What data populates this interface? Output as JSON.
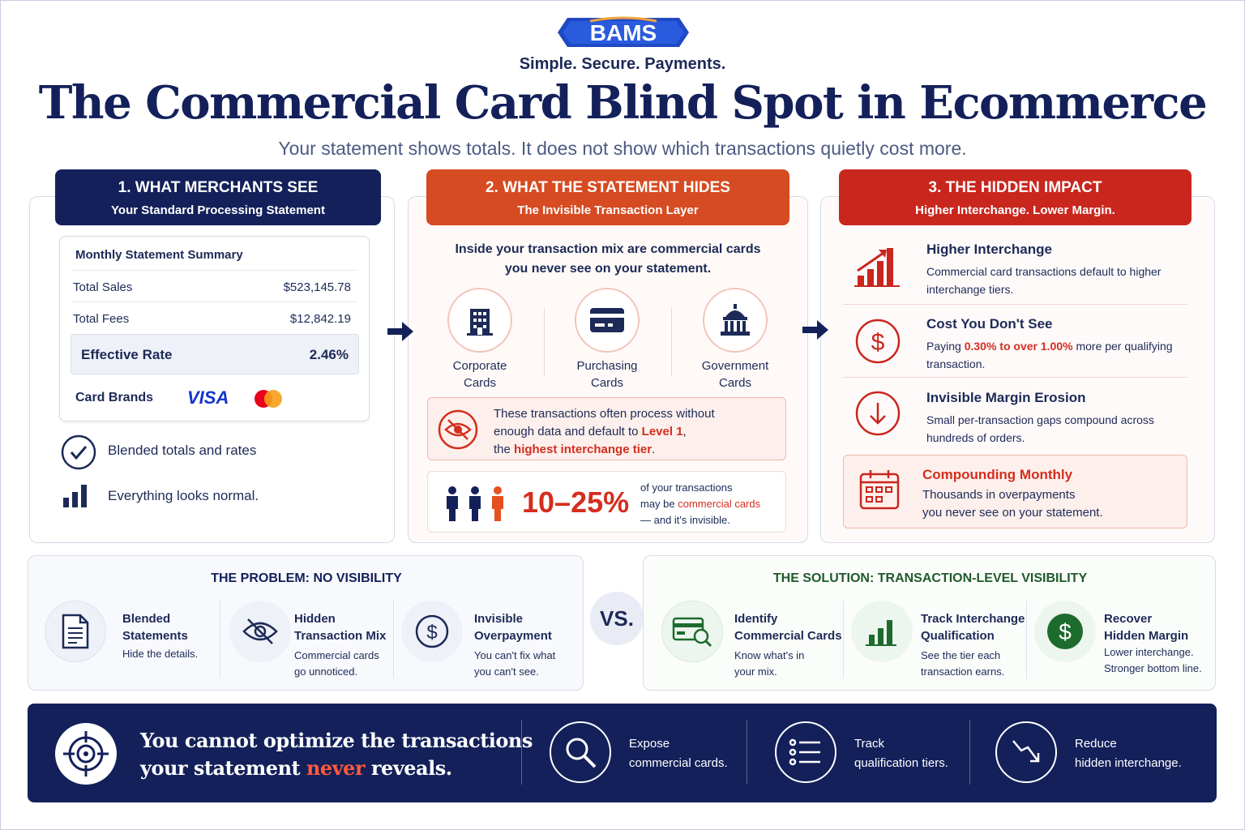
{
  "brand": {
    "logo_text": "BAMS",
    "tagline": "Simple. Secure. Payments."
  },
  "title": "The Commercial Card Blind Spot in Ecommerce",
  "subtitle": "Your statement shows totals. It does not show which transactions quietly cost more.",
  "colors": {
    "navy": "#13205a",
    "orange": "#d64b22",
    "red": "#c9261e",
    "green": "#1e6b2e"
  },
  "panel1": {
    "heading": "1. WHAT MERCHANTS SEE",
    "subheading": "Your Standard Processing Statement",
    "statement": {
      "title": "Monthly Statement Summary",
      "rows": [
        {
          "label": "Total Sales",
          "value": "$523,145.78"
        },
        {
          "label": "Total Fees",
          "value": "$12,842.19"
        }
      ],
      "effective_label": "Effective Rate",
      "effective_value": "2.46%",
      "brands_label": "Card Brands",
      "visa": "VISA"
    },
    "points": [
      {
        "icon": "check-circle-icon",
        "text": "Blended totals and rates"
      },
      {
        "icon": "bar-chart-icon",
        "text": "Everything looks normal."
      }
    ]
  },
  "panel2": {
    "heading": "2. WHAT THE STATEMENT HIDES",
    "subheading": "The Invisible Transaction Layer",
    "intro_line1": "Inside your transaction mix are commercial cards",
    "intro_line2": "you never see on your statement.",
    "cards": [
      {
        "icon": "building-icon",
        "line1": "Corporate",
        "line2": "Cards"
      },
      {
        "icon": "credit-card-icon",
        "line1": "Purchasing",
        "line2": "Cards"
      },
      {
        "icon": "capitol-icon",
        "line1": "Government",
        "line2": "Cards"
      }
    ],
    "warning": {
      "line1": "These transactions often process without",
      "line2a": "enough data and default to ",
      "line2b": "Level 1",
      "line2c": ",",
      "line3a": "the ",
      "line3b": "highest interchange tier",
      "line3c": "."
    },
    "stat": {
      "value": "10–25%",
      "line1": "of your transactions",
      "line2a": "may be ",
      "line2b": "commercial cards",
      "line3": "— and it's invisible."
    }
  },
  "panel3": {
    "heading": "3. THE HIDDEN IMPACT",
    "subheading": "Higher Interchange. Lower Margin.",
    "items": [
      {
        "icon": "rising-bars-icon",
        "title": "Higher Interchange",
        "desc": "Commercial card transactions default to higher interchange tiers."
      },
      {
        "icon": "dollar-circle-icon",
        "title": "Cost You Don't See",
        "desc_a": "Paying ",
        "desc_b": "0.30% to over 1.00%",
        "desc_c": " more per qualifying transaction."
      },
      {
        "icon": "down-arrow-circle-icon",
        "title": "Invisible Margin Erosion",
        "desc": "Small per-transaction gaps compound across hundreds of orders."
      }
    ],
    "compounding": {
      "icon": "calendar-icon",
      "title": "Compounding Monthly",
      "line1": "Thousands in overpayments",
      "line2": "you never see on your statement."
    }
  },
  "problem": {
    "heading": "THE PROBLEM: NO VISIBILITY",
    "items": [
      {
        "icon": "document-icon",
        "title1": "Blended",
        "title2": "Statements",
        "desc1": "Hide the details.",
        "desc2": ""
      },
      {
        "icon": "eye-slash-icon",
        "title1": "Hidden",
        "title2": "Transaction Mix",
        "desc1": "Commercial cards",
        "desc2": "go unnoticed."
      },
      {
        "icon": "dollar-circle-icon",
        "title1": "Invisible",
        "title2": "Overpayment",
        "desc1": "You can't fix what",
        "desc2": "you can't see."
      }
    ]
  },
  "vs": "VS.",
  "solution": {
    "heading": "THE SOLUTION: TRANSACTION-LEVEL VISIBILITY",
    "items": [
      {
        "icon": "card-search-icon",
        "title1": "Identify",
        "title2": "Commercial Cards",
        "desc1": "Know what's in",
        "desc2": "your mix."
      },
      {
        "icon": "bar-chart-icon",
        "title1": "Track Interchange",
        "title2": "Qualification",
        "desc1": "See the tier each",
        "desc2": "transaction earns."
      },
      {
        "icon": "dollar-coin-icon",
        "title1": "Recover",
        "title2": "Hidden Margin",
        "desc1": "Lower interchange.",
        "desc2": "Stronger bottom line."
      }
    ]
  },
  "footer": {
    "line1": "You cannot optimize the transactions",
    "line2a": "your statement ",
    "line2b": "never",
    "line2c": " reveals.",
    "items": [
      {
        "icon": "magnifier-icon",
        "line1": "Expose",
        "line2": "commercial cards."
      },
      {
        "icon": "list-icon",
        "line1": "Track",
        "line2": "qualification tiers."
      },
      {
        "icon": "trend-down-icon",
        "line1": "Reduce",
        "line2": "hidden interchange."
      }
    ]
  }
}
